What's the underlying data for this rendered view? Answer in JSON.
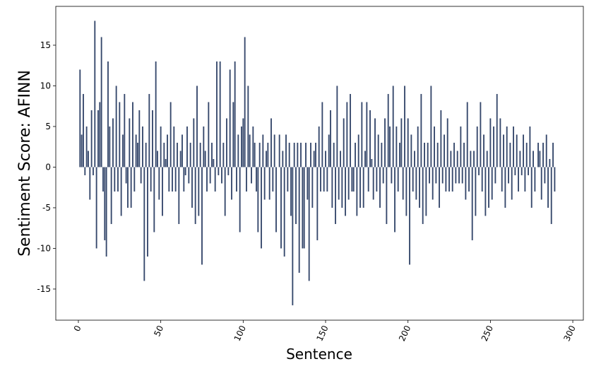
{
  "chart_data": {
    "type": "bar",
    "xlabel": "Sentence",
    "ylabel": "Sentiment Score: AFINN",
    "color": "#36486c",
    "x": [
      0,
      1,
      2,
      3,
      4,
      5,
      6,
      7,
      8,
      9,
      10,
      11,
      12,
      13,
      14,
      15,
      16,
      17,
      18,
      19,
      20,
      21,
      22,
      23,
      24,
      25,
      26,
      27,
      28,
      29,
      30,
      31,
      32,
      33,
      34,
      35,
      36,
      37,
      38,
      39,
      40,
      41,
      42,
      43,
      44,
      45,
      46,
      47,
      48,
      49,
      50,
      51,
      52,
      53,
      54,
      55,
      56,
      57,
      58,
      59,
      60,
      61,
      62,
      63,
      64,
      65,
      66,
      67,
      68,
      69,
      70,
      71,
      72,
      73,
      74,
      75,
      76,
      77,
      78,
      79,
      80,
      81,
      82,
      83,
      84,
      85,
      86,
      87,
      88,
      89,
      90,
      91,
      92,
      93,
      94,
      95,
      96,
      97,
      98,
      99,
      100,
      101,
      102,
      103,
      104,
      105,
      106,
      107,
      108,
      109,
      110,
      111,
      112,
      113,
      114,
      115,
      116,
      117,
      118,
      119,
      120,
      121,
      122,
      123,
      124,
      125,
      126,
      127,
      128,
      129,
      130,
      131,
      132,
      133,
      134,
      135,
      136,
      137,
      138,
      139,
      140,
      141,
      142,
      143,
      144,
      145,
      146,
      147,
      148,
      149,
      150,
      151,
      152,
      153,
      154,
      155,
      156,
      157,
      158,
      159,
      160,
      161,
      162,
      163,
      164,
      165,
      166,
      167,
      168,
      169,
      170,
      171,
      172,
      173,
      174,
      175,
      176,
      177,
      178,
      179,
      180,
      181,
      182,
      183,
      184,
      185,
      186,
      187,
      188,
      189,
      190,
      191,
      192,
      193,
      194,
      195,
      196,
      197,
      198,
      199,
      200,
      201,
      202,
      203,
      204,
      205,
      206,
      207,
      208,
      209,
      210,
      211,
      212,
      213,
      214,
      215,
      216,
      217,
      218,
      219,
      220,
      221,
      222,
      223,
      224,
      225,
      226,
      227,
      228,
      229,
      230,
      231,
      232,
      233,
      234,
      235,
      236,
      237,
      238,
      239,
      240,
      241,
      242,
      243,
      244,
      245,
      246,
      247,
      248,
      249,
      250,
      251,
      252,
      253,
      254,
      255,
      256,
      257,
      258,
      259,
      260,
      261,
      262,
      263,
      264,
      265,
      266,
      267,
      268,
      269,
      270,
      271,
      272,
      273,
      274,
      275,
      276,
      277,
      278,
      279,
      280,
      281,
      282,
      283,
      284,
      285,
      286,
      287,
      288,
      289
    ],
    "values": [
      0,
      12,
      4,
      9,
      -1,
      5,
      2,
      -4,
      7,
      -1,
      18,
      -10,
      7,
      8,
      16,
      -3,
      -9,
      -11,
      13,
      5,
      -7,
      6,
      -3,
      10,
      -3,
      8,
      -6,
      4,
      9,
      -2,
      -5,
      6,
      -5,
      8,
      -3,
      4,
      3,
      7,
      -2,
      5,
      -14,
      3,
      -11,
      9,
      -3,
      7,
      -8,
      13,
      2,
      -4,
      5,
      -6,
      3,
      1,
      4,
      -3,
      8,
      -3,
      5,
      -3,
      3,
      -7,
      2,
      4,
      -3,
      -1,
      5,
      -2,
      3,
      -5,
      6,
      -7,
      10,
      -6,
      3,
      -12,
      5,
      2,
      -3,
      8,
      -2,
      3,
      1,
      -3,
      13,
      -1,
      13,
      -2,
      3,
      -6,
      6,
      -1,
      12,
      -4,
      8,
      13,
      -3,
      4,
      -8,
      5,
      6,
      16,
      -3,
      10,
      4,
      -2,
      5,
      3,
      -3,
      -8,
      3,
      -10,
      4,
      -4,
      2,
      3,
      -4,
      6,
      -3,
      4,
      -8,
      0,
      4,
      -10,
      2,
      -11,
      4,
      -3,
      3,
      -6,
      -17,
      3,
      -7,
      3,
      -13,
      3,
      -10,
      -10,
      3,
      -4,
      -14,
      3,
      -5,
      2,
      3,
      -9,
      5,
      -3,
      8,
      -3,
      2,
      -3,
      4,
      7,
      -5,
      3,
      -7,
      10,
      -4,
      2,
      -5,
      6,
      -6,
      8,
      -4,
      9,
      -3,
      -3,
      3,
      -6,
      4,
      -5,
      8,
      -5,
      2,
      8,
      -3,
      7,
      1,
      -4,
      6,
      -3,
      4,
      -5,
      3,
      -2,
      6,
      -7,
      9,
      5,
      -2,
      10,
      -8,
      5,
      -3,
      3,
      6,
      -4,
      10,
      -6,
      6,
      -12,
      4,
      -3,
      2,
      -4,
      5,
      -5,
      9,
      -7,
      3,
      -6,
      3,
      -2,
      10,
      -4,
      5,
      -2,
      3,
      -5,
      7,
      -2,
      4,
      -3,
      6,
      -3,
      2,
      -3,
      3,
      -2,
      2,
      -2,
      5,
      -2,
      3,
      -4,
      8,
      -3,
      2,
      -9,
      2,
      -6,
      5,
      -1,
      8,
      -3,
      4,
      -6,
      2,
      -5,
      6,
      -4,
      5,
      -2,
      9,
      0,
      6,
      -3,
      4,
      -5,
      5,
      -2,
      3,
      -4,
      5,
      -1,
      4,
      -3,
      2,
      -1,
      4,
      -3,
      3,
      -1,
      5,
      -5,
      2,
      -3,
      0,
      3,
      2,
      -4,
      3,
      -2,
      4,
      -5,
      1,
      -7,
      3,
      -3
    ],
    "xlim": [
      -13.7,
      306.4
    ],
    "xticks": [
      0,
      50,
      100,
      150,
      200,
      250,
      300
    ],
    "ylim": [
      -18.83,
      19.78
    ],
    "yticks": [
      -15,
      -10,
      -5,
      0,
      5,
      10,
      15
    ]
  }
}
